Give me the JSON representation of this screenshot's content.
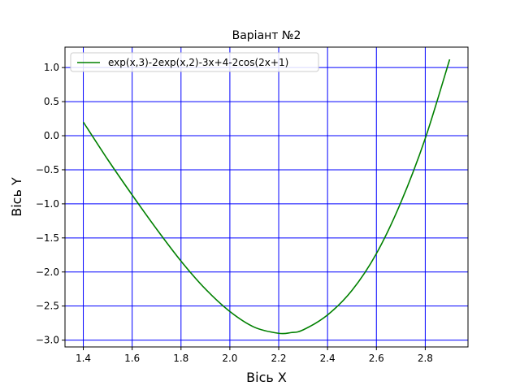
{
  "chart_data": {
    "type": "line",
    "title": "Варіант №2",
    "xlabel": "Вісь X",
    "ylabel": "Вісь Y",
    "xlim": [
      1.325,
      2.975
    ],
    "ylim": [
      -3.1,
      1.3
    ],
    "grid": true,
    "grid_color": "#0000ff",
    "legend_position": "upper-left",
    "x_ticks": [
      {
        "value": 1.4,
        "label": "1.4"
      },
      {
        "value": 1.6,
        "label": "1.6"
      },
      {
        "value": 1.8,
        "label": "1.8"
      },
      {
        "value": 2.0,
        "label": "2.0"
      },
      {
        "value": 2.2,
        "label": "2.2"
      },
      {
        "value": 2.4,
        "label": "2.4"
      },
      {
        "value": 2.6,
        "label": "2.6"
      },
      {
        "value": 2.8,
        "label": "2.8"
      }
    ],
    "y_ticks": [
      {
        "value": 1.0,
        "label": "1.0"
      },
      {
        "value": 0.5,
        "label": "0.5"
      },
      {
        "value": 0.0,
        "label": "0.0"
      },
      {
        "value": -0.5,
        "label": "−0.5"
      },
      {
        "value": -1.0,
        "label": "−1.0"
      },
      {
        "value": -1.5,
        "label": "−1.5"
      },
      {
        "value": -2.0,
        "label": "−2.0"
      },
      {
        "value": -2.5,
        "label": "−2.5"
      },
      {
        "value": -3.0,
        "label": "−3.0"
      }
    ],
    "series": [
      {
        "name": "exp(x,3)-2exp(x,2)-3x+4-2cos(2x+1)",
        "color": "#008000",
        "x": [
          1.4,
          1.5,
          1.6,
          1.7,
          1.8,
          1.9,
          2.0,
          2.1,
          2.2,
          2.25,
          2.3,
          2.4,
          2.5,
          2.6,
          2.7,
          2.8,
          2.9
        ],
        "y": [
          0.2,
          -0.35,
          -0.87,
          -1.37,
          -1.84,
          -2.25,
          -2.58,
          -2.81,
          -2.9,
          -2.89,
          -2.85,
          -2.63,
          -2.27,
          -1.73,
          -0.98,
          -0.04,
          1.12
        ]
      }
    ]
  }
}
